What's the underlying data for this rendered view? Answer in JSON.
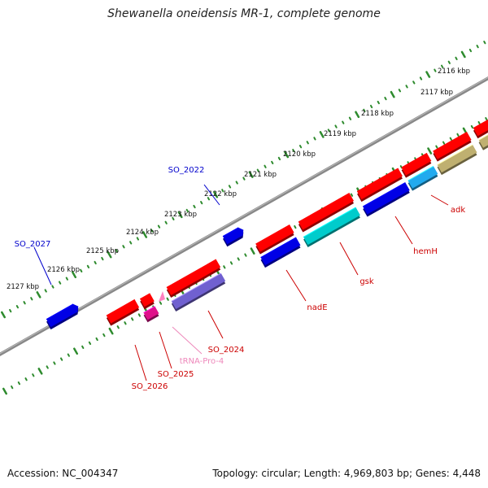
{
  "title": "Shewanella oneidensis MR-1, complete genome",
  "footer": {
    "accession": "Accession: NC_004347",
    "topology": "Topology: circular; Length: 4,969,803 bp; Genes: 4,448"
  },
  "kbp_labels": [
    "2116 kbp",
    "2117 kbp",
    "2118 kbp",
    "2119 kbp",
    "2120 kbp",
    "2121 kbp",
    "2122 kbp",
    "2123 kbp",
    "2124 kbp",
    "2125 kbp",
    "2126 kbp",
    "2127 kbp"
  ],
  "gene_labels": [
    "SO_2022",
    "SO_2027",
    "adk",
    "hemH",
    "gsk",
    "nadE",
    "SO_2024",
    "tRNA-Pro-4",
    "SO_2025",
    "SO_2026"
  ],
  "colors": {
    "red": "#ff0000",
    "blue": "#0000e6",
    "cyan": "#00cccc",
    "lightblue": "#22aaee",
    "olive": "#bfb070",
    "purple": "#7060d0",
    "magenta": "#e0108a",
    "pink": "#ff80c0",
    "backbone": "#888888",
    "ticks": "#2e8b2e",
    "label_red": "#cc0000",
    "label_blue": "#0000cc",
    "label_pink": "#ee88bb"
  }
}
